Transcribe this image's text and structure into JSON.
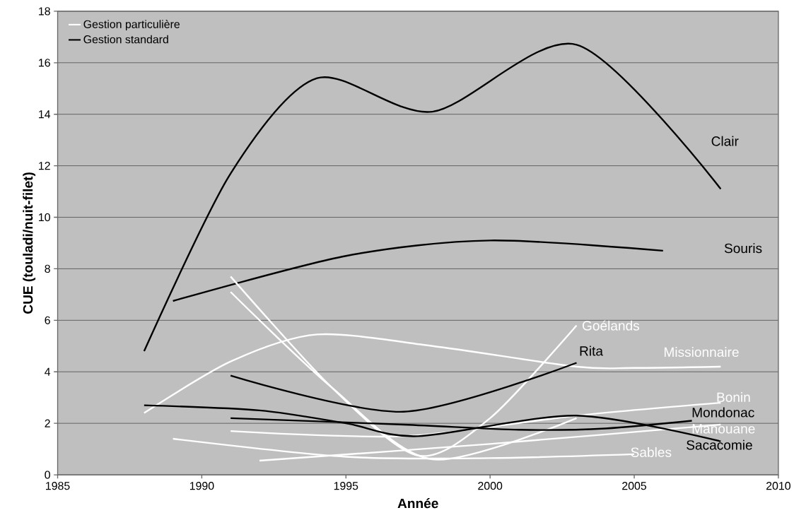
{
  "chart_data": {
    "type": "line",
    "xlabel": "Année",
    "ylabel": "CUE (touladi/nuit-filet)",
    "xlim": [
      1985,
      2010
    ],
    "xticks": [
      1985,
      1990,
      1995,
      2000,
      2005,
      2010
    ],
    "ylim": [
      0,
      18
    ],
    "yticks": [
      0,
      2,
      4,
      6,
      8,
      10,
      12,
      14,
      16,
      18
    ],
    "grid": "y",
    "legend": "top left",
    "marker": "none",
    "line_style": "solid",
    "series": [
      {
        "name": "Gestion particulière",
        "color": "#ffffff",
        "x": [
          1988,
          1991,
          1994,
          1998,
          2003,
          2005,
          2008
        ],
        "values": [
          2.4,
          4.4,
          5.45,
          5.0,
          4.2,
          4.15,
          4.2
        ]
      },
      {
        "name": "Gestion standard",
        "color": "#000000",
        "x": [
          1988,
          1991,
          1994,
          1998,
          2003,
          2008
        ],
        "values": [
          4.8,
          11.7,
          15.4,
          14.1,
          16.7,
          11.1
        ]
      },
      {
        "color": "#000000",
        "x": [
          1989,
          1995,
          2000,
          2006
        ],
        "values": [
          6.75,
          8.5,
          9.1,
          8.7
        ]
      },
      {
        "color": "#ffffff",
        "x": [
          1991,
          1994.5,
          1997.5,
          2000,
          2003
        ],
        "values": [
          7.7,
          3.4,
          0.75,
          2.2,
          5.8
        ]
      },
      {
        "color": "#ffffff",
        "x": [
          1991,
          1994.5,
          1998,
          2003
        ],
        "values": [
          7.1,
          3.4,
          0.6,
          2.2
        ]
      },
      {
        "color": "#ffffff",
        "x": [
          1991,
          1997,
          2003,
          2008
        ],
        "values": [
          1.7,
          1.5,
          2.3,
          2.8
        ]
      },
      {
        "color": "#ffffff",
        "x": [
          1992,
          2000,
          2008
        ],
        "values": [
          0.55,
          1.2,
          1.95
        ]
      },
      {
        "color": "#ffffff",
        "x": [
          1989,
          1995,
          2000,
          2005
        ],
        "values": [
          1.4,
          0.7,
          0.65,
          0.8
        ]
      },
      {
        "color": "#000000",
        "x": [
          1991,
          1997,
          2003
        ],
        "values": [
          3.85,
          2.45,
          4.35
        ]
      },
      {
        "color": "#000000",
        "x": [
          1991,
          1997,
          2001,
          2004,
          2007
        ],
        "values": [
          2.2,
          1.95,
          1.75,
          1.8,
          2.1
        ]
      },
      {
        "color": "#000000",
        "x": [
          1988,
          1992,
          1995,
          1997.5,
          2003,
          2008
        ],
        "values": [
          2.7,
          2.5,
          2.0,
          1.5,
          2.3,
          1.3
        ]
      }
    ],
    "annotations": [
      "Clair",
      "Souris",
      {
        "text": "Goélands",
        "x": 2003,
        "y": 5.8
      },
      {
        "text": "Rita",
        "x": 2003,
        "y": 4.35
      },
      {
        "text": "Missionnaire",
        "x": 2008,
        "y": 4.2
      },
      {
        "text": "Bonin",
        "x": 2008,
        "y": 2.8
      },
      {
        "text": "Mondonac",
        "x": 2007,
        "y": 2.1
      },
      {
        "text": "Manouane",
        "x": 2008,
        "y": 1.95
      },
      {
        "text": "Sacacomie",
        "x": 2008,
        "y": 1.3
      },
      {
        "text": "Sables",
        "x": 2005,
        "y": 0.8
      }
    ]
  }
}
